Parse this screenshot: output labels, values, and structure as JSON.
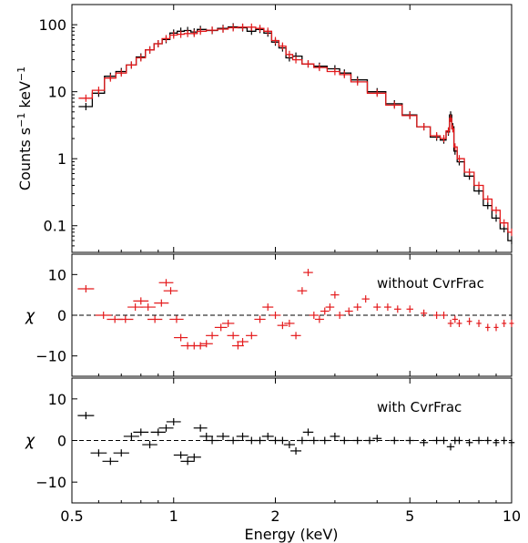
{
  "chart_data": [
    {
      "type": "line",
      "panel": "spectrum",
      "title": "",
      "xlabel": "Energy (keV)",
      "ylabel_main": "Counts s",
      "ylabel_exp1": "−1",
      "ylabel_mid": " keV",
      "ylabel_exp2": "−1",
      "xscale": "log",
      "yscale": "log",
      "xlim": [
        0.5,
        10
      ],
      "ylim": [
        0.04,
        200
      ],
      "x_ticks": [
        0.5,
        1,
        2,
        5,
        10
      ],
      "x_tick_labels": [
        "0.5",
        "1",
        "2",
        "5",
        "10"
      ],
      "y_ticks": [
        0.1,
        1,
        10,
        100
      ],
      "y_tick_labels": [
        "0.1",
        "1",
        "10",
        "100"
      ],
      "series": [
        {
          "color": "#000000",
          "x": [
            0.55,
            0.6,
            0.65,
            0.7,
            0.75,
            0.8,
            0.85,
            0.9,
            0.95,
            1.0,
            1.05,
            1.1,
            1.15,
            1.2,
            1.3,
            1.4,
            1.5,
            1.6,
            1.7,
            1.8,
            1.9,
            2.0,
            2.1,
            2.2,
            2.3,
            2.5,
            2.7,
            3.0,
            3.2,
            3.5,
            4.0,
            4.5,
            5.0,
            5.5,
            6.0,
            6.3,
            6.5,
            6.6,
            6.7,
            6.8,
            7.0,
            7.5,
            8.0,
            8.5,
            9.0,
            9.5,
            10.0
          ],
          "y": [
            6.0,
            9.5,
            17,
            20,
            25,
            33,
            42,
            52,
            60,
            75,
            80,
            82,
            78,
            85,
            82,
            88,
            93,
            90,
            80,
            85,
            75,
            55,
            45,
            32,
            34,
            26,
            24,
            22,
            19,
            15,
            10,
            6.6,
            4.5,
            3.0,
            2.1,
            1.9,
            2.5,
            4.5,
            3.0,
            1.3,
            0.9,
            0.55,
            0.33,
            0.2,
            0.13,
            0.09,
            0.06
          ]
        },
        {
          "color": "#e41a1c",
          "x": [
            0.55,
            0.6,
            0.65,
            0.7,
            0.75,
            0.8,
            0.85,
            0.9,
            0.95,
            1.0,
            1.05,
            1.1,
            1.15,
            1.2,
            1.3,
            1.4,
            1.5,
            1.6,
            1.7,
            1.8,
            1.9,
            2.0,
            2.1,
            2.2,
            2.3,
            2.5,
            2.7,
            3.0,
            3.2,
            3.5,
            4.0,
            4.5,
            5.0,
            5.5,
            6.0,
            6.3,
            6.5,
            6.6,
            6.7,
            6.8,
            7.0,
            7.5,
            8.0,
            8.5,
            9.0,
            9.5,
            10.0
          ],
          "y": [
            8.0,
            10.5,
            16,
            19,
            25,
            32,
            42,
            52,
            62,
            70,
            72,
            74,
            74,
            80,
            83,
            86,
            90,
            92,
            92,
            88,
            80,
            58,
            48,
            36,
            30,
            26,
            23,
            20,
            18,
            14,
            9.5,
            6.3,
            4.4,
            3.0,
            2.2,
            2.0,
            2.6,
            4.0,
            2.8,
            1.5,
            1.0,
            0.63,
            0.4,
            0.25,
            0.17,
            0.11,
            0.08
          ]
        }
      ]
    },
    {
      "type": "scatter",
      "panel": "residuals-without",
      "annotation": "without CvrFrac",
      "ylabel": "χ",
      "ylim": [
        -15,
        15
      ],
      "y_ticks": [
        10,
        0,
        -10
      ],
      "y_tick_labels": [
        "10",
        "0",
        "−10"
      ],
      "series": [
        {
          "color": "#e41a1c",
          "x": [
            0.55,
            0.62,
            0.67,
            0.72,
            0.77,
            0.8,
            0.84,
            0.88,
            0.92,
            0.95,
            0.98,
            1.02,
            1.05,
            1.1,
            1.15,
            1.2,
            1.25,
            1.3,
            1.38,
            1.45,
            1.5,
            1.55,
            1.6,
            1.7,
            1.8,
            1.9,
            2.0,
            2.1,
            2.2,
            2.3,
            2.4,
            2.5,
            2.6,
            2.7,
            2.8,
            2.9,
            3.0,
            3.1,
            3.3,
            3.5,
            3.7,
            4.0,
            4.3,
            4.6,
            5.0,
            5.5,
            6.0,
            6.3,
            6.6,
            6.8,
            7.0,
            7.5,
            8.0,
            8.5,
            9.0,
            9.5,
            10.0
          ],
          "y": [
            6.5,
            0,
            -1,
            -1,
            2,
            3.5,
            2,
            -1,
            3,
            8,
            6,
            -1,
            -5.5,
            -7.5,
            -7.5,
            -7.5,
            -7,
            -5,
            -3,
            -2,
            -5,
            -7.5,
            -6.5,
            -5,
            -1,
            2,
            0,
            -2.5,
            -2,
            -5,
            6,
            10.5,
            0,
            -1,
            1,
            2,
            5,
            0,
            1,
            2,
            4,
            2,
            2,
            1.5,
            1.5,
            0.5,
            0,
            0,
            -2,
            -1,
            -2,
            -1.5,
            -2,
            -3,
            -3,
            -2,
            -2
          ]
        }
      ]
    },
    {
      "type": "scatter",
      "panel": "residuals-with",
      "annotation": "with CvrFrac",
      "ylabel": "χ",
      "ylim": [
        -15,
        15
      ],
      "y_ticks": [
        10,
        0,
        -10
      ],
      "y_tick_labels": [
        "10",
        "0",
        "−10"
      ],
      "series": [
        {
          "color": "#000000",
          "x": [
            0.55,
            0.6,
            0.65,
            0.7,
            0.75,
            0.8,
            0.85,
            0.9,
            0.95,
            1.0,
            1.05,
            1.1,
            1.15,
            1.2,
            1.25,
            1.3,
            1.4,
            1.5,
            1.6,
            1.7,
            1.8,
            1.9,
            2.0,
            2.1,
            2.2,
            2.3,
            2.4,
            2.5,
            2.6,
            2.8,
            3.0,
            3.2,
            3.5,
            3.8,
            4.0,
            4.5,
            5.0,
            5.5,
            6.0,
            6.3,
            6.6,
            6.8,
            7.0,
            7.5,
            8.0,
            8.5,
            9.0,
            9.5,
            10.0
          ],
          "y": [
            6,
            -3,
            -5,
            -3,
            1,
            2,
            -1,
            2,
            3,
            4.5,
            -3.5,
            -5,
            -4,
            3,
            1,
            0,
            1,
            0,
            1,
            0,
            0,
            1,
            0,
            0,
            -1,
            -2.5,
            0,
            2,
            0,
            0,
            1,
            0,
            0,
            0,
            0.5,
            0,
            0,
            -0.5,
            0,
            0,
            -1.5,
            0,
            0,
            -0.5,
            0,
            0,
            -0.5,
            0,
            -0.5
          ]
        }
      ]
    }
  ]
}
